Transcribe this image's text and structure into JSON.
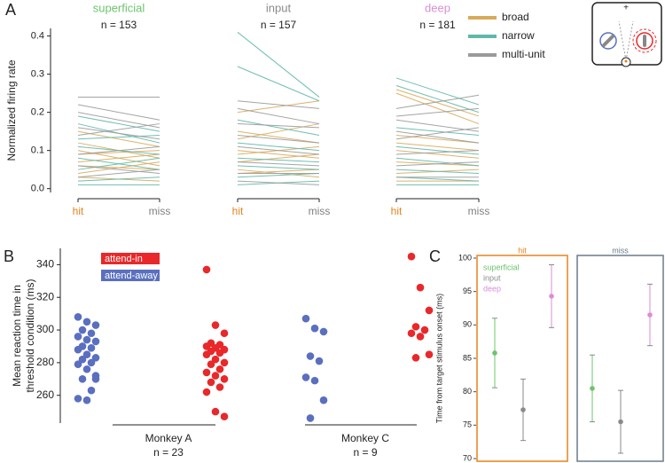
{
  "chart_data": [
    {
      "type": "line",
      "label": "A",
      "ylabel": "Normalized firing rate",
      "ylim": [
        -0.01,
        0.42
      ],
      "yticks": [
        {
          "value": 0,
          "label": "0.0"
        },
        {
          "value": 0.1,
          "label": "0.1"
        },
        {
          "value": 0.2,
          "label": "0.2"
        },
        {
          "value": 0.3,
          "label": "0.3"
        },
        {
          "value": 0.4,
          "label": "0.4"
        }
      ],
      "categories": [
        "hit",
        "miss"
      ],
      "category_colors": [
        "#e8821e",
        "#808080"
      ],
      "legend": [
        {
          "name": "broad",
          "color": "#d9aa5a"
        },
        {
          "name": "narrow",
          "color": "#5fb8aa"
        },
        {
          "name": "multi-unit",
          "color": "#9a9a9a"
        }
      ],
      "groups": [
        {
          "title": "superficial",
          "color": "#6cc46c",
          "n": "n = 153",
          "lines": [
            [
              [
                0.12,
                0.08
              ],
              [
                0.09,
                0.1
              ],
              [
                0.06,
                0.05
              ],
              [
                0.04,
                0.07
              ],
              [
                0.15,
                0.11
              ],
              [
                0.03,
                0.02
              ],
              [
                0.07,
                0.09
              ],
              [
                0.1,
                0.06
              ]
            ],
            [
              [
                0.19,
                0.15
              ],
              [
                0.17,
                0.12
              ],
              [
                0.13,
                0.14
              ],
              [
                0.08,
                0.05
              ],
              [
                0.05,
                0.08
              ],
              [
                0.02,
                0.03
              ],
              [
                0.11,
                0.09
              ],
              [
                0.01,
                0.01
              ]
            ],
            [
              [
                0.24,
                0.24
              ],
              [
                0.22,
                0.18
              ],
              [
                0.2,
                0.16
              ],
              [
                0.14,
                0.17
              ],
              [
                0.09,
                0.11
              ],
              [
                0.06,
                0.04
              ],
              [
                0.16,
                0.13
              ],
              [
                0.03,
                0.05
              ]
            ]
          ]
        },
        {
          "title": "input",
          "color": "#8a8a8a",
          "n": "n = 157",
          "lines": [
            [
              [
                0.2,
                0.23
              ],
              [
                0.13,
                0.17
              ],
              [
                0.1,
                0.08
              ],
              [
                0.07,
                0.09
              ],
              [
                0.15,
                0.12
              ],
              [
                0.04,
                0.05
              ],
              [
                0.05,
                0.03
              ],
              [
                0.09,
                0.11
              ]
            ],
            [
              [
                0.41,
                0.24
              ],
              [
                0.32,
                0.23
              ],
              [
                0.18,
                0.14
              ],
              [
                0.12,
                0.1
              ],
              [
                0.08,
                0.07
              ],
              [
                0.03,
                0.04
              ],
              [
                0.06,
                0.05
              ],
              [
                0.01,
                0.02
              ]
            ],
            [
              [
                0.23,
                0.21
              ],
              [
                0.21,
                0.17
              ],
              [
                0.17,
                0.16
              ],
              [
                0.14,
                0.12
              ],
              [
                0.11,
                0.09
              ],
              [
                0.07,
                0.06
              ],
              [
                0.04,
                0.04
              ],
              [
                0.02,
                0.01
              ]
            ]
          ]
        },
        {
          "title": "deep",
          "color": "#d98fd4",
          "n": "n = 181",
          "lines": [
            [
              [
                0.26,
                0.19
              ],
              [
                0.25,
                0.17
              ],
              [
                0.14,
                0.12
              ],
              [
                0.1,
                0.08
              ],
              [
                0.07,
                0.06
              ],
              [
                0.04,
                0.05
              ],
              [
                0.12,
                0.1
              ],
              [
                0.02,
                0.02
              ]
            ],
            [
              [
                0.29,
                0.22
              ],
              [
                0.27,
                0.2
              ],
              [
                0.16,
                0.14
              ],
              [
                0.11,
                0.09
              ],
              [
                0.08,
                0.06
              ],
              [
                0.05,
                0.04
              ],
              [
                0.03,
                0.02
              ],
              [
                0.01,
                0.01
              ]
            ],
            [
              [
                0.21,
                0.245
              ],
              [
                0.19,
                0.21
              ],
              [
                0.18,
                0.15
              ],
              [
                0.13,
                0.16
              ],
              [
                0.09,
                0.1
              ],
              [
                0.06,
                0.07
              ],
              [
                0.03,
                0.03
              ],
              [
                0.15,
                0.12
              ]
            ]
          ]
        }
      ]
    },
    {
      "type": "scatter",
      "label": "B",
      "ylabel": [
        "Mean reaction time in",
        "threshold condition (ms)"
      ],
      "ylim": [
        243,
        350
      ],
      "yticks": [
        260,
        280,
        300,
        320,
        340
      ],
      "series": [
        {
          "name": "attend-in",
          "color": "#e8282a"
        },
        {
          "name": "attend-away",
          "color": "#5a6fbf"
        }
      ],
      "groups": [
        {
          "name": "Monkey A",
          "n": "n = 23",
          "values": [
            [
              337,
              303,
              298,
              292,
              291,
              290,
              289,
              288,
              287,
              286,
              285,
              282,
              280,
              279,
              276,
              274,
              272,
              270,
              268,
              265,
              262,
              250,
              247
            ],
            [
              308,
              305,
              303,
              300,
              298,
              296,
              294,
              293,
              290,
              289,
              288,
              285,
              283,
              282,
              280,
              279,
              276,
              272,
              270,
              263,
              258,
              257,
              270
            ]
          ]
        },
        {
          "name": "Monkey C",
          "n": "n = 9",
          "values": [
            [
              345,
              326,
              312,
              302,
              300,
              298,
              296,
              285,
              283
            ],
            [
              307,
              301,
              299,
              284,
              281,
              271,
              269,
              257,
              246
            ]
          ]
        }
      ]
    },
    {
      "type": "errorbar",
      "label": "C",
      "ylabel": "Time from target stimulus onset (ms)",
      "ylim": [
        70,
        100
      ],
      "yticks": [
        70,
        75,
        80,
        85,
        90,
        95,
        100
      ],
      "series": [
        {
          "name": "superficial",
          "color": "#6cc46c"
        },
        {
          "name": "input",
          "color": "#8a8a8a"
        },
        {
          "name": "deep",
          "color": "#d98fd4"
        }
      ],
      "panels": [
        {
          "title": "hit",
          "color": "#e8821e",
          "values": [
            85.8,
            77.3,
            94.3
          ],
          "errors": [
            5.2,
            4.6,
            4.7
          ]
        },
        {
          "title": "miss",
          "color": "#6a7a8a",
          "values": [
            80.5,
            75.5,
            91.5
          ],
          "errors": [
            5.0,
            4.7,
            4.6
          ]
        }
      ]
    }
  ]
}
